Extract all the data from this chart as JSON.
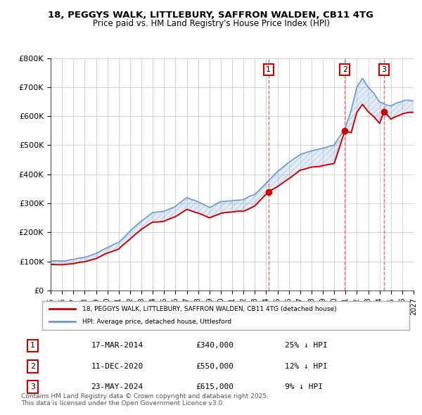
{
  "title_line1": "18, PEGGYS WALK, LITTLEBURY, SAFFRON WALDEN, CB11 4TG",
  "title_line2": "Price paid vs. HM Land Registry's House Price Index (HPI)",
  "ylabel": "",
  "bg_color": "#ffffff",
  "plot_bg_color": "#ffffff",
  "grid_color": "#cccccc",
  "hpi_color": "#6699cc",
  "price_color": "#cc0000",
  "sale_marker_color": "#cc0000",
  "dashed_line_color": "#ff6666",
  "ytick_labels": [
    "£0",
    "£100K",
    "£200K",
    "£300K",
    "£400K",
    "£500K",
    "£600K",
    "£700K",
    "£800K"
  ],
  "ytick_values": [
    0,
    100000,
    200000,
    300000,
    400000,
    500000,
    600000,
    700000,
    800000
  ],
  "xmin": 1995,
  "xmax": 2027,
  "ymin": 0,
  "ymax": 800000,
  "sales": [
    {
      "year": 2014.21,
      "price": 340000,
      "label": "1"
    },
    {
      "year": 2020.94,
      "price": 550000,
      "label": "2"
    },
    {
      "year": 2024.39,
      "price": 615000,
      "label": "3"
    }
  ],
  "sale_table": [
    {
      "num": "1",
      "date": "17-MAR-2014",
      "price": "£340,000",
      "note": "25% ↓ HPI"
    },
    {
      "num": "2",
      "date": "11-DEC-2020",
      "price": "£550,000",
      "note": "12% ↓ HPI"
    },
    {
      "num": "3",
      "date": "23-MAY-2024",
      "price": "£615,000",
      "note": "9% ↓ HPI"
    }
  ],
  "legend_line1": "18, PEGGYS WALK, LITTLEBURY, SAFFRON WALDEN, CB11 4TG (detached house)",
  "legend_line2": "HPI: Average price, detached house, Uttlesford",
  "footer": "Contains HM Land Registry data © Crown copyright and database right 2025.\nThis data is licensed under the Open Government Licence v3.0.",
  "hatch_color": "#aabbdd"
}
